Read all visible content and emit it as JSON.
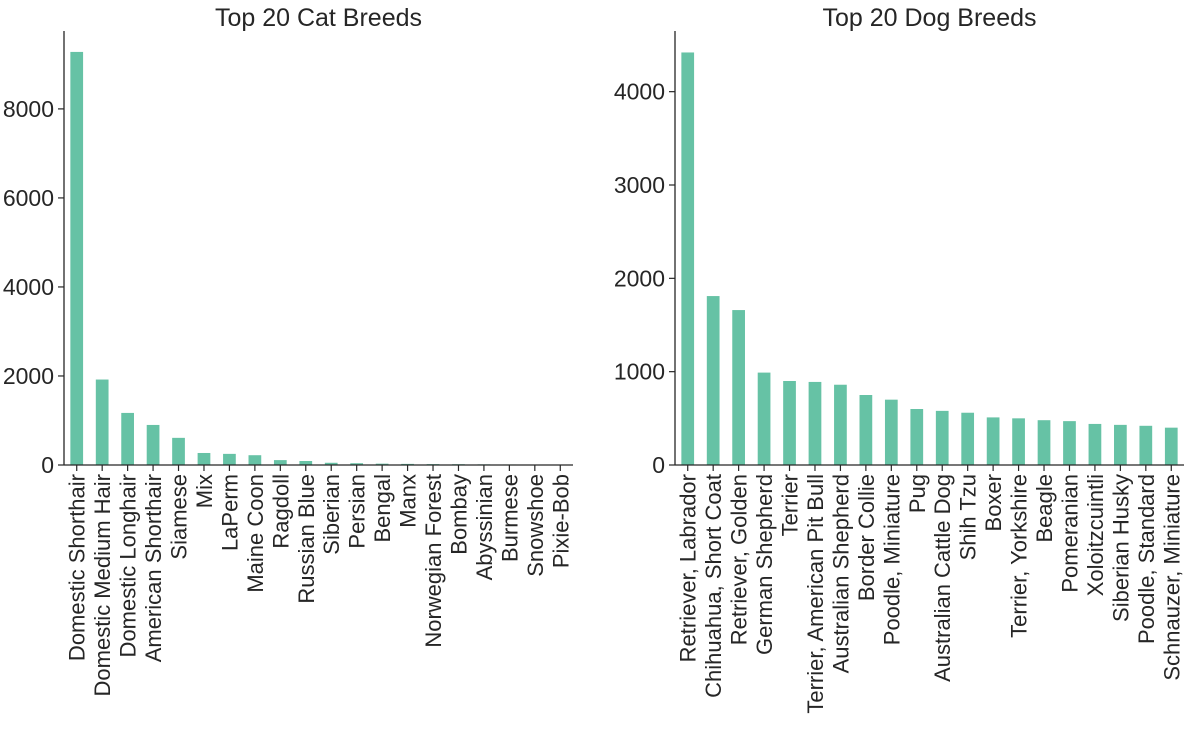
{
  "chart_data": [
    {
      "type": "bar",
      "title": "Top 20 Cat Breeds",
      "xlabel": "",
      "ylabel": "",
      "categories": [
        "Domestic Shorthair",
        "Domestic Medium Hair",
        "Domestic Longhair",
        "American Shorthair",
        "Siamese",
        "Mix",
        "LaPerm",
        "Maine Coon",
        "Ragdoll",
        "Russian Blue",
        "Siberian",
        "Persian",
        "Bengal",
        "Manx",
        "Norwegian Forest",
        "Bombay",
        "Abyssinian",
        "Burmese",
        "Snowshoe",
        "Pixie-Bob"
      ],
      "values": [
        9280,
        1920,
        1170,
        900,
        610,
        270,
        250,
        220,
        110,
        90,
        50,
        40,
        30,
        25,
        20,
        18,
        15,
        12,
        10,
        8
      ],
      "ylim": [
        0,
        9750
      ],
      "yticks": [
        0,
        2000,
        4000,
        6000,
        8000
      ],
      "ytick_labels": [
        "0",
        "2000",
        "4000",
        "6000",
        "8000"
      ],
      "bar_color": "#66c2a5",
      "grid": false,
      "legend": "none"
    },
    {
      "type": "bar",
      "title": "Top 20 Dog Breeds",
      "xlabel": "",
      "ylabel": "",
      "categories": [
        "Retriever, Labrador",
        "Chihuahua, Short Coat",
        "Retriever, Golden",
        "German Shepherd",
        "Terrier",
        "Terrier, American Pit Bull",
        "Australian Shepherd",
        "Border Collie",
        "Poodle, Miniature",
        "Pug",
        "Australian Cattle Dog",
        "Shih Tzu",
        "Boxer",
        "Terrier, Yorkshire",
        "Beagle",
        "Pomeranian",
        "Xoloitzcuintli",
        "Siberian Husky",
        "Poodle, Standard",
        "Schnauzer, Miniature"
      ],
      "values": [
        4420,
        1810,
        1660,
        990,
        900,
        890,
        860,
        750,
        700,
        600,
        580,
        560,
        510,
        500,
        480,
        470,
        440,
        430,
        420,
        400
      ],
      "ylim": [
        0,
        4650
      ],
      "yticks": [
        0,
        1000,
        2000,
        3000,
        4000
      ],
      "ytick_labels": [
        "0",
        "1000",
        "2000",
        "3000",
        "4000"
      ],
      "bar_color": "#66c2a5",
      "grid": false,
      "legend": "none"
    }
  ]
}
